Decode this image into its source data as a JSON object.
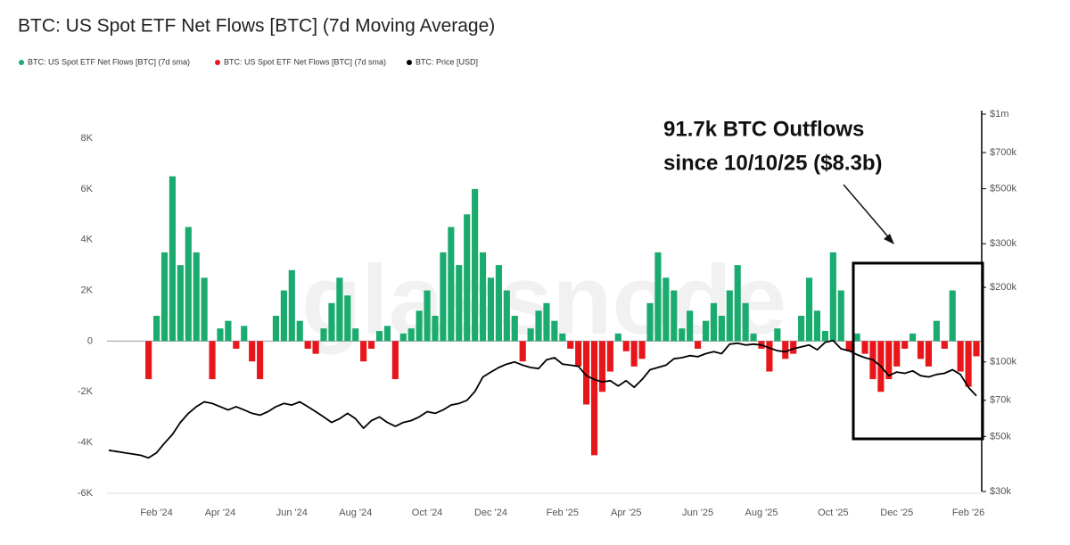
{
  "chart_data": {
    "type": "bar",
    "title": "BTC: US Spot ETF Net Flows [BTC] (7d Moving Average)",
    "watermark": "glassnode",
    "annotation": [
      "91.7k BTC Outflows",
      "since 10/10/25 ($8.3b)"
    ],
    "categories": [
      null,
      null,
      null,
      null,
      null,
      null,
      "Feb '24",
      null,
      null,
      null,
      null,
      null,
      null,
      null,
      "Apr '24",
      null,
      null,
      null,
      null,
      null,
      null,
      null,
      null,
      "Jun '24",
      null,
      null,
      null,
      null,
      null,
      null,
      null,
      "Aug '24",
      null,
      null,
      null,
      null,
      null,
      null,
      null,
      null,
      "Oct '24",
      null,
      null,
      null,
      null,
      null,
      null,
      null,
      "Dec '24",
      null,
      null,
      null,
      null,
      null,
      null,
      null,
      null,
      "Feb '25",
      null,
      null,
      null,
      null,
      null,
      null,
      null,
      "Apr '25",
      null,
      null,
      null,
      null,
      null,
      null,
      null,
      null,
      "Jun '25",
      null,
      null,
      null,
      null,
      null,
      null,
      null,
      "Aug '25",
      null,
      null,
      null,
      null,
      null,
      null,
      null,
      null,
      "Oct '25",
      null,
      null,
      null,
      null,
      null,
      null,
      null,
      "Dec '25",
      null,
      null,
      null,
      null,
      null,
      null,
      null,
      null,
      "Feb '26",
      null
    ],
    "series": [
      {
        "name": "BTC: US Spot ETF Net Flows [BTC] (7d sma)",
        "color": "#1aab6e",
        "values": [
          null,
          null,
          null,
          null,
          null,
          null,
          1000,
          3500,
          6500,
          3000,
          4500,
          3500,
          2500,
          null,
          500,
          800,
          null,
          600,
          null,
          null,
          null,
          1000,
          2000,
          2800,
          800,
          null,
          null,
          500,
          1500,
          2500,
          1800,
          500,
          null,
          null,
          400,
          600,
          null,
          300,
          500,
          1200,
          2000,
          1000,
          3500,
          4500,
          3000,
          5000,
          6000,
          3500,
          2500,
          3000,
          2000,
          1000,
          null,
          500,
          1200,
          1500,
          800,
          300,
          null,
          null,
          null,
          null,
          null,
          null,
          300,
          null,
          null,
          null,
          1500,
          3500,
          2500,
          2000,
          500,
          1200,
          null,
          800,
          1500,
          1000,
          2000,
          3000,
          1500,
          300,
          null,
          null,
          500,
          null,
          null,
          1000,
          2500,
          1200,
          400,
          3500,
          2000,
          null,
          300,
          null,
          null,
          null,
          null,
          null,
          null,
          300,
          null,
          null,
          800,
          null,
          2000,
          null,
          null,
          null
        ]
      },
      {
        "name": "BTC: US Spot ETF Net Flows [BTC] (7d sma)",
        "color": "#e8161a",
        "values": [
          null,
          null,
          null,
          null,
          null,
          -1500,
          null,
          null,
          null,
          null,
          null,
          null,
          null,
          -1500,
          null,
          null,
          -300,
          null,
          -800,
          -1500,
          null,
          null,
          null,
          null,
          null,
          -300,
          -500,
          null,
          null,
          null,
          null,
          null,
          -800,
          -300,
          null,
          null,
          -1500,
          null,
          null,
          null,
          null,
          null,
          null,
          null,
          null,
          null,
          null,
          null,
          null,
          null,
          null,
          null,
          -800,
          null,
          null,
          null,
          null,
          null,
          -300,
          -1000,
          -2500,
          -4500,
          -2000,
          -1200,
          null,
          -400,
          -1000,
          -700,
          null,
          null,
          null,
          null,
          null,
          null,
          -300,
          null,
          null,
          null,
          null,
          null,
          null,
          null,
          -300,
          -1200,
          null,
          -700,
          -500,
          null,
          null,
          null,
          null,
          null,
          null,
          -400,
          null,
          -500,
          -1500,
          -2000,
          -1500,
          -1000,
          -300,
          null,
          -700,
          -1000,
          null,
          -300,
          null,
          -1200,
          -1800,
          -600
        ]
      },
      {
        "name": "BTC: Price [USD]",
        "color": "#000000",
        "axis": "y2",
        "type": "line",
        "values": [
          44000,
          43500,
          43000,
          42500,
          42000,
          41000,
          43000,
          47000,
          51000,
          57000,
          62000,
          66000,
          69000,
          68000,
          66000,
          64000,
          66000,
          64000,
          62000,
          61000,
          63000,
          66000,
          68000,
          67000,
          69000,
          66000,
          63000,
          60000,
          57000,
          59000,
          62000,
          59000,
          54000,
          58000,
          60000,
          57000,
          55000,
          57000,
          58000,
          60000,
          63000,
          62000,
          64000,
          67000,
          68000,
          70000,
          76000,
          87000,
          91000,
          95000,
          98000,
          100000,
          97000,
          95000,
          94000,
          102000,
          104000,
          98000,
          97000,
          96000,
          88000,
          85000,
          83000,
          84000,
          80000,
          84000,
          79000,
          85000,
          93000,
          95000,
          97000,
          103000,
          104000,
          106000,
          105000,
          108000,
          110000,
          108000,
          118000,
          119000,
          117000,
          118000,
          117000,
          114000,
          111000,
          110000,
          113000,
          115000,
          117000,
          112000,
          120000,
          122000,
          113000,
          111000,
          107000,
          104000,
          102000,
          96000,
          88000,
          91000,
          90000,
          92000,
          88000,
          87000,
          89000,
          90000,
          93000,
          89000,
          79000,
          73000
        ]
      }
    ],
    "ylim": [
      -6000,
      8000
    ],
    "yticks": [
      {
        "value": -6000,
        "label": "-6K"
      },
      {
        "value": -4000,
        "label": "-4K"
      },
      {
        "value": -2000,
        "label": "-2K"
      },
      0,
      {
        "value": 2000,
        "label": "2K"
      },
      {
        "value": 4000,
        "label": "4K"
      },
      {
        "value": 6000,
        "label": "6K"
      },
      {
        "value": 8000,
        "label": "8K"
      }
    ],
    "y2lim": [
      30000,
      1000000
    ],
    "y2scale": "log",
    "y2ticks": [
      {
        "value": 30000,
        "label": "$30k"
      },
      {
        "value": 50000,
        "label": "$50k"
      },
      {
        "value": 70000,
        "label": "$70k"
      },
      {
        "value": 100000,
        "label": "$100k"
      },
      {
        "value": 200000,
        "label": "$200k"
      },
      {
        "value": 300000,
        "label": "$300k"
      },
      {
        "value": 500000,
        "label": "$500k"
      },
      {
        "value": 700000,
        "label": "$700k"
      },
      {
        "value": 1000000,
        "label": "$1m"
      }
    ],
    "grid": false
  }
}
